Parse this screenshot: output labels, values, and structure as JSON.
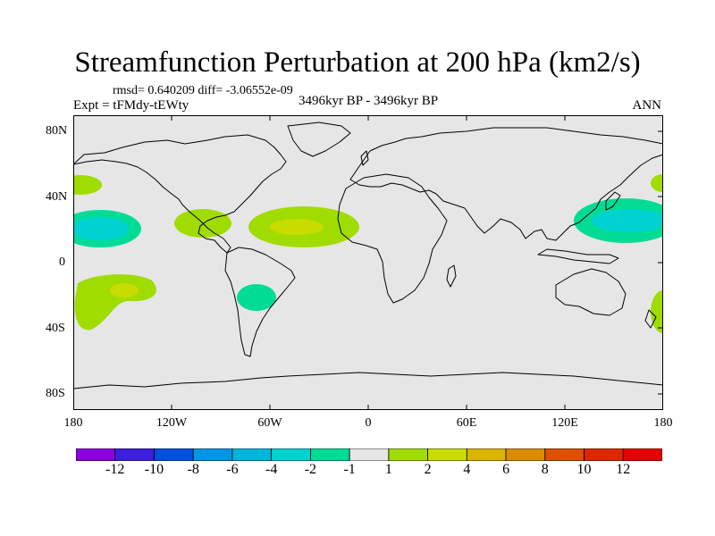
{
  "title": "Streamfunction Perturbation at 200 hPa (km2/s)",
  "stats": "rmsd= 0.640209 diff= -3.06552e-09",
  "experiment": "Expt = tFMdy-tEWty",
  "period": "3496kyr BP - 3496kyr BP",
  "season": "ANN",
  "map": {
    "projection": "cylindrical equidistant",
    "lon_range": [
      -180,
      180
    ],
    "lat_range": [
      -90,
      90
    ],
    "background_color": "#e6e6e6",
    "lat_labels": [
      "80N",
      "40N",
      "0",
      "40S",
      "80S"
    ],
    "lon_labels": [
      "180",
      "120W",
      "60W",
      "0",
      "60E",
      "120E",
      "180"
    ],
    "contours": [
      {
        "name": "east-pacific-north-positive",
        "lon": -177,
        "lat": 48,
        "value": 1.5,
        "color": "#a0dc00"
      },
      {
        "name": "central-pacific-north-negative",
        "lon": -155,
        "lat": 22,
        "value": -2.5,
        "color": "#00dcdc"
      },
      {
        "name": "central-america-positive",
        "lon": -95,
        "lat": 25,
        "value": 1.5,
        "color": "#a0dc00"
      },
      {
        "name": "north-atlantic-positive",
        "lon": -40,
        "lat": 22,
        "value": 3,
        "color": "#c8dc00"
      },
      {
        "name": "south-pacific-positive",
        "lon": -145,
        "lat": -22,
        "value": 3,
        "color": "#c8dc00"
      },
      {
        "name": "south-america-negative",
        "lon": -65,
        "lat": -22,
        "value": -1.5,
        "color": "#00dc96"
      },
      {
        "name": "northwest-pacific-negative",
        "lon": 150,
        "lat": 25,
        "value": -3,
        "color": "#00dcdc"
      },
      {
        "name": "dateline-north-positive",
        "lon": 180,
        "lat": 50,
        "value": 1.5,
        "color": "#a0dc00"
      },
      {
        "name": "dateline-south-positive",
        "lon": 178,
        "lat": -28,
        "value": 1.5,
        "color": "#a0dc00"
      }
    ]
  },
  "colorbar": {
    "labels": [
      "-12",
      "-10",
      "-8",
      "-6",
      "-4",
      "-2",
      "-1",
      "1",
      "2",
      "4",
      "6",
      "8",
      "10",
      "12"
    ],
    "colors": [
      "#8c00dc",
      "#3c1edc",
      "#0050dc",
      "#0096e6",
      "#00b4dc",
      "#00d2d2",
      "#00dc96",
      "#e6e6e6",
      "#a0dc00",
      "#c8dc00",
      "#dcb400",
      "#dc8c00",
      "#dc5000",
      "#dc2800",
      "#e60000"
    ]
  }
}
